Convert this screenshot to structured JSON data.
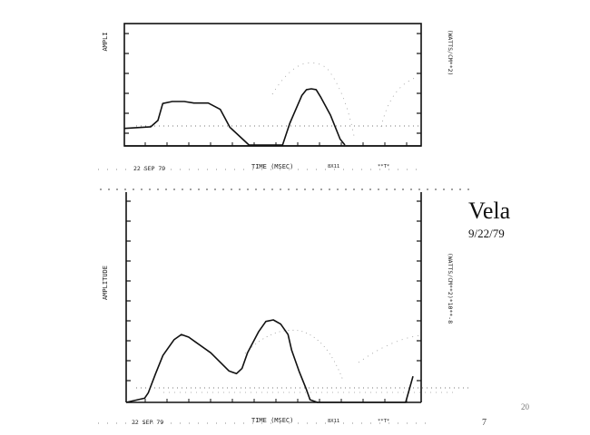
{
  "slide": {
    "title": "Vela",
    "date": "9/22/79",
    "slide_number": "20",
    "page_mark": "7"
  },
  "chart_data": [
    {
      "type": "line",
      "ylabel": "AMPLI",
      "ylabel_right": "(WATTS/CM**2)",
      "xlabel": "TIME (MSEC)",
      "date_label": "22 SEP 79",
      "extra_labels": [
        "8X11",
        "**T*"
      ],
      "series": [
        {
          "x": [
            0,
            5.5,
            7,
            8,
            10,
            12.5,
            14.5,
            17.5,
            20,
            22,
            26,
            28,
            31,
            33,
            34.5,
            37,
            38,
            39,
            40,
            41,
            43,
            45,
            46
          ],
          "y": [
            0.42,
            0.46,
            0.62,
            1.05,
            1.1,
            1.1,
            1.06,
            1.06,
            0.9,
            0.45,
            0,
            0,
            0,
            0,
            0.55,
            1.25,
            1.4,
            1.42,
            1.4,
            1.2,
            0.75,
            0.15,
            0
          ]
        }
      ]
    },
    {
      "type": "line",
      "ylabel": "AMPLITUDE",
      "ylabel_right": "(WATTS/CM**2)*10**-8",
      "xlabel": "TIME (MSEC)",
      "date_label": "22 SEP 79",
      "extra_labels": [
        "8X11",
        "**T*"
      ],
      "series": [
        {
          "x": [
            0,
            5,
            6,
            8,
            10,
            13,
            15,
            17,
            19,
            23,
            28,
            30,
            31.5,
            33,
            36,
            38,
            40,
            42,
            44,
            45,
            47,
            49,
            50,
            52,
            57,
            65,
            76,
            78
          ],
          "y": [
            0,
            0.08,
            0.18,
            0.55,
            0.9,
            1.2,
            1.3,
            1.25,
            1.15,
            0.95,
            0.6,
            0.55,
            0.65,
            0.95,
            1.35,
            1.55,
            1.58,
            1.5,
            1.3,
            1.0,
            0.6,
            0.25,
            0.05,
            0,
            0,
            0,
            0,
            0.5
          ]
        }
      ]
    }
  ]
}
